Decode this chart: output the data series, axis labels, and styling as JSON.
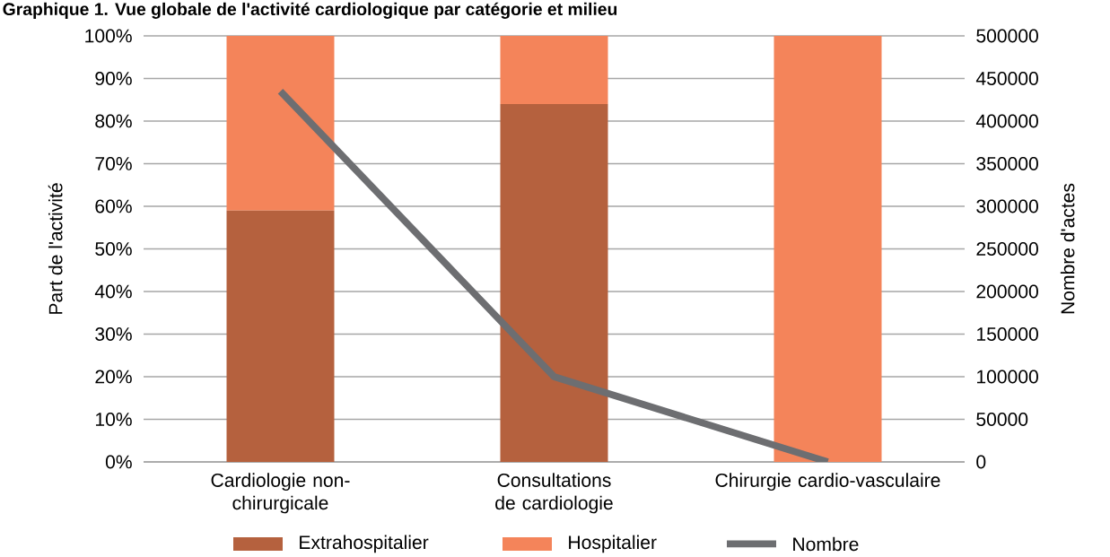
{
  "chart_data": {
    "type": "bar",
    "stacked": true,
    "title": "Graphique 1. Vue globale de l'activité cardiologique par catégorie et milieu",
    "categories": [
      "Cardiologie non-chirurgicale",
      "Consultations de cardiologie",
      "Chirurgie cardio-vasculaire"
    ],
    "series": [
      {
        "name": "Extrahospitalier",
        "color": "#b5613e",
        "values": [
          59,
          84,
          0
        ]
      },
      {
        "name": "Hospitalier",
        "color": "#f4845a",
        "values": [
          41,
          16,
          100
        ]
      },
      {
        "name": "Nombre",
        "type": "line",
        "axis": "y2",
        "color": "#6d6e71",
        "values": [
          435000,
          100000,
          0
        ]
      }
    ],
    "ylabel": "Part de l'activité",
    "y2label": "Nombre d'actes",
    "ylim": [
      0,
      100
    ],
    "yticks": [
      {
        "value": 0,
        "label": "0%"
      },
      {
        "value": 10,
        "label": "10%"
      },
      {
        "value": 20,
        "label": "20%"
      },
      {
        "value": 30,
        "label": "30%"
      },
      {
        "value": 40,
        "label": "40%"
      },
      {
        "value": 50,
        "label": "50%"
      },
      {
        "value": 60,
        "label": "60%"
      },
      {
        "value": 70,
        "label": "70%"
      },
      {
        "value": 80,
        "label": "80%"
      },
      {
        "value": 90,
        "label": "90%"
      },
      {
        "value": 100,
        "label": "100%"
      }
    ],
    "y2lim": [
      0,
      500000
    ],
    "y2ticks": [
      0,
      50000,
      100000,
      150000,
      200000,
      250000,
      300000,
      350000,
      400000,
      450000,
      500000
    ],
    "grid": "y",
    "legend": "bottom"
  }
}
